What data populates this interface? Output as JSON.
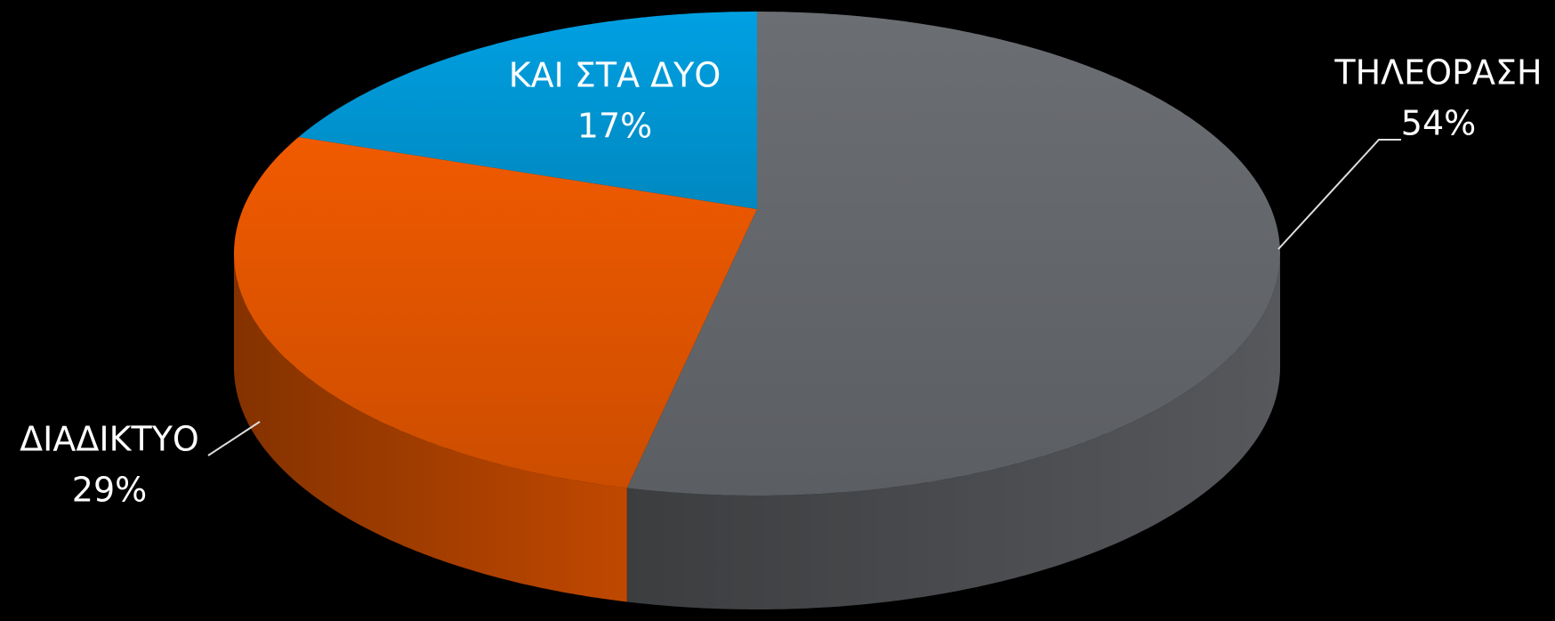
{
  "chart_data": {
    "type": "pie3d",
    "categories": [
      "ΤΗΛΕΟΡΑΣΗ",
      "ΔΙΑΔΙΚΤΥΟ",
      "ΚΑΙ ΣΤΑ ΔΥΟ"
    ],
    "values": [
      54,
      29,
      17
    ],
    "value_labels": [
      "54%",
      "29%",
      "17%"
    ],
    "colors": [
      "#6b6e73",
      "#f05a00",
      "#00a0e2"
    ]
  }
}
